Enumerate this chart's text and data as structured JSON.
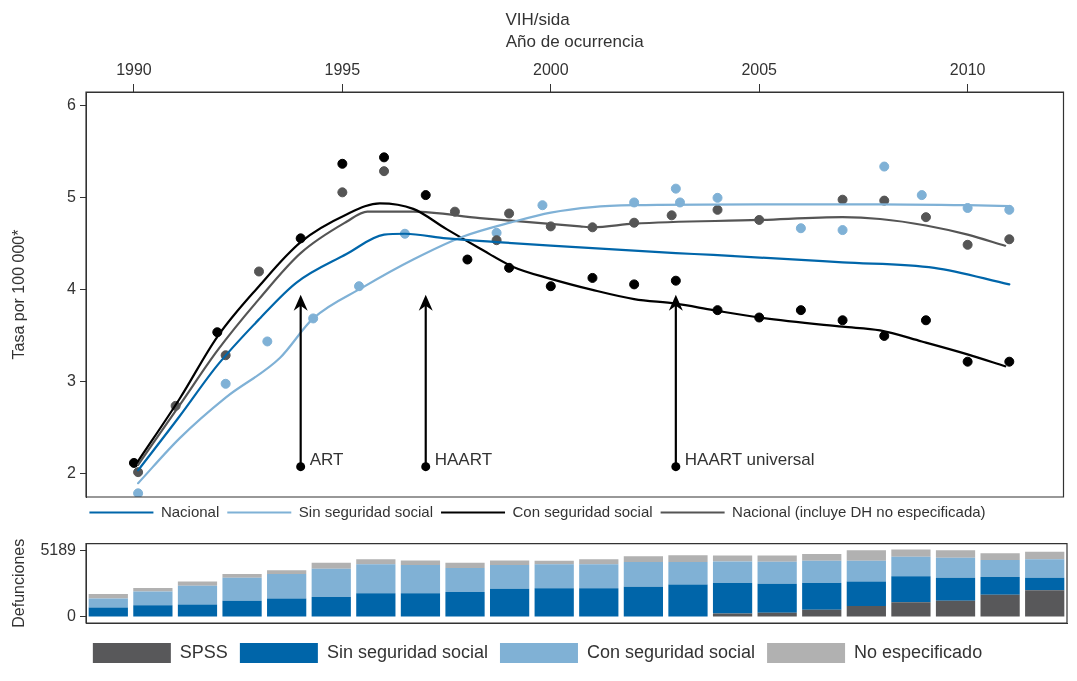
{
  "chart_data": [
    {
      "type": "line",
      "title": "VIH/sida",
      "xlabel": "Año de ocurrencia",
      "ylabel": "Tasa por 100 000*",
      "xlim": [
        1988.85,
        2012.3
      ],
      "xticks": [
        1990,
        1995,
        2000,
        2005,
        2010
      ],
      "ylim": [
        1.75,
        6.15
      ],
      "yticks": [
        2,
        3,
        4,
        5,
        6
      ],
      "legend": "bottom",
      "series": [
        {
          "type": "scatter",
          "marker": "circle",
          "color": "#555555",
          "x": [
            1990.1,
            1991.0,
            1992.2,
            1993.0,
            1995.0,
            1996.0,
            1997.7,
            1998.7,
            1999.0,
            2000.0,
            2001.0,
            2002.0,
            2002.9,
            2004.0,
            2005.0,
            2007.0,
            2008.0,
            2009.0,
            2010.0,
            2011.0
          ],
          "values": [
            2.02,
            2.74,
            3.29,
            4.2,
            5.06,
            5.29,
            4.85,
            4.54,
            4.83,
            4.69,
            4.68,
            4.73,
            4.81,
            4.87,
            4.76,
            4.98,
            4.97,
            4.79,
            4.49,
            4.55
          ]
        },
        {
          "type": "scatter",
          "marker": "circle",
          "color": "#7fb1d6",
          "x": [
            1990.1,
            1992.2,
            1993.2,
            1994.3,
            1995.4,
            1996.5,
            1998.7,
            1999.8,
            2002.0,
            2003.0,
            2003.1,
            2004.0,
            2006.0,
            2007.0,
            2008.0,
            2008.9,
            2010.0,
            2011.0
          ],
          "values": [
            1.79,
            2.98,
            3.44,
            3.69,
            4.04,
            4.61,
            4.62,
            4.92,
            4.95,
            5.1,
            4.95,
            5.0,
            4.67,
            4.65,
            5.34,
            5.03,
            4.89,
            4.87
          ]
        },
        {
          "type": "scatter",
          "marker": "circle",
          "color": "#000000",
          "x": [
            1990,
            1992,
            1994,
            1995,
            1996,
            1997,
            1998,
            1999,
            2000,
            2001,
            2002,
            2003,
            2004,
            2005,
            2006,
            2007,
            2008,
            2009,
            2010,
            2011
          ],
          "values": [
            2.12,
            3.54,
            4.56,
            5.37,
            5.44,
            5.03,
            4.33,
            4.24,
            4.04,
            4.13,
            4.06,
            4.1,
            3.78,
            3.7,
            3.78,
            3.67,
            3.5,
            3.67,
            3.22,
            3.22
          ]
        },
        {
          "type": "line",
          "name": "Nacional",
          "color": "#0066aa",
          "x": [
            1990.1,
            1991.1,
            1992.0,
            1993.0,
            1993.9,
            1995.1,
            1996.0,
            1996.5,
            1997.5,
            1998.7,
            2000.0,
            2003.0,
            2003.9,
            2007.0,
            2009.2,
            2011.0
          ],
          "values": [
            2.04,
            2.63,
            3.18,
            3.68,
            4.08,
            4.39,
            4.6,
            4.61,
            4.56,
            4.52,
            4.48,
            4.4,
            4.38,
            4.3,
            4.24,
            4.06
          ]
        },
        {
          "type": "line",
          "name": "Sin seguridad social",
          "color": "#7fb1d6",
          "x": [
            1990.1,
            1991.1,
            1992.2,
            1993.5,
            1994.3,
            1995.5,
            1996.7,
            1997.9,
            1999.1,
            2000.0,
            2001.0,
            2002.0,
            2005.0,
            2007.9,
            2010.0,
            2011.0
          ],
          "values": [
            1.9,
            2.39,
            2.83,
            3.26,
            3.69,
            4.03,
            4.33,
            4.58,
            4.74,
            4.84,
            4.9,
            4.92,
            4.93,
            4.93,
            4.92,
            4.91
          ]
        },
        {
          "type": "line",
          "name": "Con seguridad social",
          "color": "#000000",
          "x": [
            1990.1,
            1991.1,
            1992.0,
            1993.0,
            1994.0,
            1995.1,
            1995.9,
            1996.7,
            1997.5,
            1998.3,
            1999.1,
            2000.0,
            2001.0,
            2002.0,
            2003.0,
            2003.9,
            2005.0,
            2007.0,
            2007.9,
            2008.9,
            2010.0,
            2010.9
          ],
          "values": [
            2.14,
            2.82,
            3.49,
            4.04,
            4.52,
            4.82,
            4.94,
            4.88,
            4.66,
            4.45,
            4.25,
            4.12,
            4.0,
            3.9,
            3.85,
            3.78,
            3.7,
            3.6,
            3.56,
            3.44,
            3.3,
            3.17
          ]
        },
        {
          "type": "line",
          "name": "Nacional (incluye DH no especificada)",
          "color": "#555555",
          "x": [
            1990.1,
            1991.1,
            1992.0,
            1993.0,
            1994.0,
            1995.1,
            1995.6,
            1996.7,
            1998.3,
            2000.7,
            2001.0,
            2002.0,
            2005.0,
            2007.0,
            2007.9,
            2009.0,
            2010.0,
            2010.9
          ],
          "values": [
            2.1,
            2.75,
            3.34,
            3.9,
            4.4,
            4.74,
            4.85,
            4.85,
            4.78,
            4.69,
            4.68,
            4.72,
            4.76,
            4.79,
            4.77,
            4.7,
            4.6,
            4.48
          ]
        }
      ],
      "annotations": [
        {
          "text": "ART",
          "x": 1994,
          "y": 2.08
        },
        {
          "text": "HAART",
          "x": 1997,
          "y": 2.08
        },
        {
          "text": "HAART universal",
          "x": 2003,
          "y": 2.08
        }
      ]
    },
    {
      "type": "bar",
      "stacked": true,
      "ylabel": "Defunciones",
      "ylim": [
        -480,
        5750
      ],
      "yticks": [
        0,
        5189
      ],
      "legend": "bottom",
      "tick_labels": "y",
      "categories": [
        null,
        null,
        null,
        null,
        null,
        null,
        null,
        null,
        null,
        null,
        null,
        null,
        null,
        null,
        null,
        null,
        null,
        null,
        null,
        null,
        null,
        null
      ],
      "series": [
        {
          "name": "SPSS",
          "color": "#58585a",
          "values": [
            0,
            0,
            0,
            0,
            0,
            0,
            0,
            0,
            0,
            0,
            0,
            0,
            0,
            0,
            270,
            330,
            560,
            860,
            1150,
            1260,
            1730,
            2080
          ]
        },
        {
          "name": "Sin seguridad social",
          "color": "#0065a9",
          "values": [
            740,
            920,
            970,
            1260,
            1440,
            1560,
            1850,
            1850,
            1960,
            2200,
            2250,
            2250,
            2370,
            2550,
            2390,
            2270,
            2100,
            1920,
            2040,
            1810,
            1400,
            990
          ]
        },
        {
          "name": "Con seguridad social",
          "color": "#80b1d5",
          "values": [
            700,
            1070,
            1480,
            1810,
            1930,
            2220,
            2270,
            2220,
            1870,
            1870,
            1870,
            1870,
            1940,
            1750,
            1690,
            1730,
            1750,
            1630,
            1520,
            1570,
            1340,
            1460
          ]
        },
        {
          "name": "No especificado",
          "color": "#b1b1b1",
          "values": [
            350,
            270,
            330,
            290,
            290,
            470,
            410,
            350,
            410,
            350,
            290,
            410,
            450,
            530,
            470,
            490,
            530,
            820,
            580,
            580,
            530,
            580
          ]
        }
      ]
    }
  ]
}
